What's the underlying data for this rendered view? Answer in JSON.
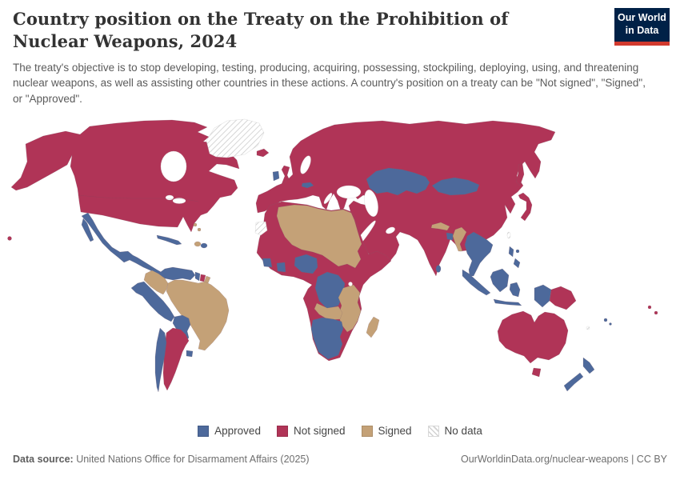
{
  "header": {
    "title": "Country position on the Treaty on the Prohibition of Nuclear Weapons, 2024",
    "subtitle": "The treaty's objective is to stop developing, testing, producing, acquiring, possessing, stockpiling, deploying, using, and threatening nuclear weapons, as well as assisting other countries in these actions. A country's position on a treaty can be \"Not signed\", \"Signed\", or \"Approved\"."
  },
  "logo": {
    "line1": "Our World",
    "line2": "in Data",
    "bg": "#002147",
    "accent": "#d23a2e"
  },
  "legend": {
    "items": [
      {
        "label": "Approved",
        "color": "#4d699b",
        "type": "solid"
      },
      {
        "label": "Not signed",
        "color": "#b03457",
        "type": "solid"
      },
      {
        "label": "Signed",
        "color": "#c4a177",
        "type": "solid"
      },
      {
        "label": "No data",
        "color": "#ffffff",
        "type": "hatched"
      }
    ]
  },
  "footer": {
    "source_label": "Data source:",
    "source_text": " United Nations Office for Disarmament Affairs (2025)",
    "link_text": "OurWorldinData.org/nuclear-weapons | CC BY"
  },
  "map": {
    "status_colors": {
      "approved": "#4d699b",
      "not_signed": "#b03457",
      "signed": "#c4a177",
      "no_data": "#ffffff"
    },
    "regions": {
      "greenland": "no_data",
      "north-america": "not_signed",
      "mexico-central-america": "approved",
      "cuba": "approved",
      "haiti": "signed",
      "dominican-republic": "approved",
      "bahamas": "signed",
      "trinidad": "not_signed",
      "venezuela": "approved",
      "guyana": "approved",
      "suriname": "not_signed",
      "french-guiana": "signed",
      "colombia": "signed",
      "brazil": "signed",
      "peru-ecuador": "approved",
      "bolivia-paraguay": "approved",
      "chile": "approved",
      "argentina": "not_signed",
      "uruguay": "approved",
      "iceland": "not_signed",
      "ireland": "approved",
      "uk": "not_signed",
      "eurasia": "not_signed",
      "kazakhstan": "approved",
      "mongolia": "approved",
      "austria": "approved",
      "nepal": "signed",
      "bangladesh": "approved",
      "myanmar": "signed",
      "sri-lanka": "approved",
      "indochina": "approved",
      "sumatra": "approved",
      "java": "approved",
      "borneo": "approved",
      "sulawesi": "approved",
      "philippines": "approved",
      "taiwan": "no_data",
      "west-papua": "approved",
      "papua-new-guinea": "not_signed",
      "japan": "not_signed",
      "sakhalin": "not_signed",
      "australia": "not_signed",
      "tasmania": "not_signed",
      "new-zealand": "approved",
      "fiji": "approved",
      "solomons": "not_signed",
      "new-caledonia": "no_data",
      "hawaii": "not_signed",
      "africa": "not_signed",
      "sahara-sahel": "signed",
      "nigeria": "approved",
      "ghana": "approved",
      "guinea": "approved",
      "drc": "approved",
      "angola": "signed",
      "east-africa-signed": "signed",
      "southern-africa": "approved",
      "madagascar": "signed",
      "western-sahara": "no_data"
    }
  },
  "chart_data": {
    "type": "choropleth_map",
    "title": "Country position on the Treaty on the Prohibition of Nuclear Weapons, 2024",
    "year": 2024,
    "legend_position": "bottom-center",
    "categories": [
      "Approved",
      "Not signed",
      "Signed",
      "No data"
    ],
    "category_colors": {
      "Approved": "#4d699b",
      "Not signed": "#b03457",
      "Signed": "#c4a177",
      "No data": "#ffffff (diagonal hatch)"
    },
    "countries_by_category": {
      "Approved": [
        "Mexico",
        "Guatemala",
        "Honduras",
        "Nicaragua",
        "Costa Rica",
        "Panama",
        "Cuba",
        "Dominican Republic",
        "Venezuela",
        "Guyana",
        "Ecuador",
        "Peru",
        "Bolivia",
        "Paraguay",
        "Chile",
        "Uruguay",
        "Ireland",
        "Austria",
        "Malta",
        "Kazakhstan",
        "Mongolia",
        "Bangladesh",
        "Sri Lanka",
        "Thailand",
        "Vietnam",
        "Laos",
        "Cambodia",
        "Malaysia",
        "Indonesia",
        "Philippines",
        "New Zealand",
        "Fiji",
        "Nigeria",
        "Ghana",
        "Guinea",
        "Democratic Republic of Congo",
        "Namibia",
        "Botswana",
        "South Africa"
      ],
      "Not signed": [
        "United States",
        "Canada",
        "Argentina",
        "Suriname",
        "Trinidad and Tobago",
        "Iceland",
        "United Kingdom",
        "France",
        "Germany",
        "Spain",
        "Portugal",
        "Italy",
        "Poland",
        "Ukraine",
        "Norway",
        "Sweden",
        "Finland",
        "Russia",
        "Turkey",
        "Saudi Arabia",
        "Iran",
        "Pakistan",
        "India",
        "China",
        "Japan",
        "North Korea",
        "South Korea",
        "Australia",
        "Papua New Guinea",
        "Solomon Islands",
        "Morocco",
        "Mauritania",
        "Mali",
        "Cameroon",
        "Ethiopia",
        "Somalia",
        "Kenya",
        "Uganda"
      ],
      "Signed": [
        "Brazil",
        "Colombia",
        "Haiti",
        "Bahamas",
        "Algeria",
        "Libya",
        "Egypt",
        "Sudan",
        "Niger",
        "Chad",
        "Angola",
        "Tanzania",
        "Zambia",
        "Zimbabwe",
        "Mozambique",
        "Madagascar",
        "Nepal",
        "Myanmar"
      ],
      "No data": [
        "Greenland",
        "Western Sahara",
        "Taiwan",
        "New Caledonia"
      ]
    },
    "source": "United Nations Office for Disarmament Affairs (2025)"
  }
}
